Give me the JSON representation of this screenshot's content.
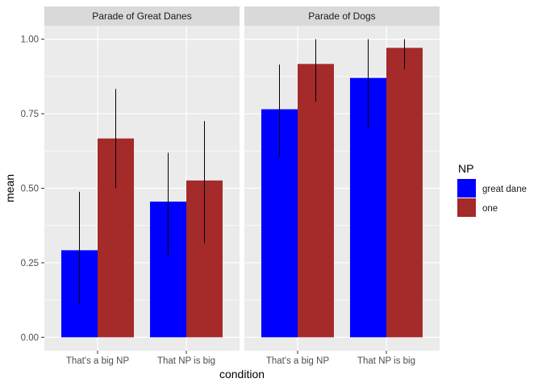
{
  "chart_data": {
    "type": "bar",
    "xlabel": "condition",
    "ylabel": "mean",
    "ylim": [
      -0.045,
      1.045
    ],
    "yticks": [
      0.0,
      0.25,
      0.5,
      0.75,
      1.0
    ],
    "ytick_labels": [
      "0.00",
      "0.25",
      "0.50",
      "0.75",
      "1.00"
    ],
    "categories": [
      "That's a big NP",
      "That NP is big"
    ],
    "legend": {
      "title": "NP",
      "position": "right",
      "entries": [
        {
          "name": "great dane",
          "color": "#0000ff"
        },
        {
          "name": "one",
          "color": "#a52a2a"
        }
      ]
    },
    "grid": true,
    "panels": [
      {
        "title": "Parade of Great Danes",
        "series": [
          {
            "name": "great dane",
            "color": "#0000ff",
            "values": [
              0.292,
              0.455
            ],
            "err_low": [
              0.113,
              0.274
            ],
            "err_high": [
              0.488,
              0.619
            ]
          },
          {
            "name": "one",
            "color": "#a52a2a",
            "values": [
              0.667,
              0.526
            ],
            "err_low": [
              0.5,
              0.316
            ],
            "err_high": [
              0.833,
              0.725
            ]
          }
        ]
      },
      {
        "title": "Parade of Dogs",
        "series": [
          {
            "name": "great dane",
            "color": "#0000ff",
            "values": [
              0.765,
              0.87
            ],
            "err_low": [
              0.607,
              0.7
            ],
            "err_high": [
              0.915,
              1.0
            ]
          },
          {
            "name": "one",
            "color": "#a52a2a",
            "values": [
              0.917,
              0.971
            ],
            "err_low": [
              0.79,
              0.9
            ],
            "err_high": [
              1.0,
              1.0
            ]
          }
        ]
      }
    ]
  },
  "colors": {
    "panel_background": "#ebebeb",
    "strip_background": "#d9d9d9",
    "grid_major": "#ffffff",
    "axis_text": "#4d4d4d",
    "title_text": "#000000"
  }
}
